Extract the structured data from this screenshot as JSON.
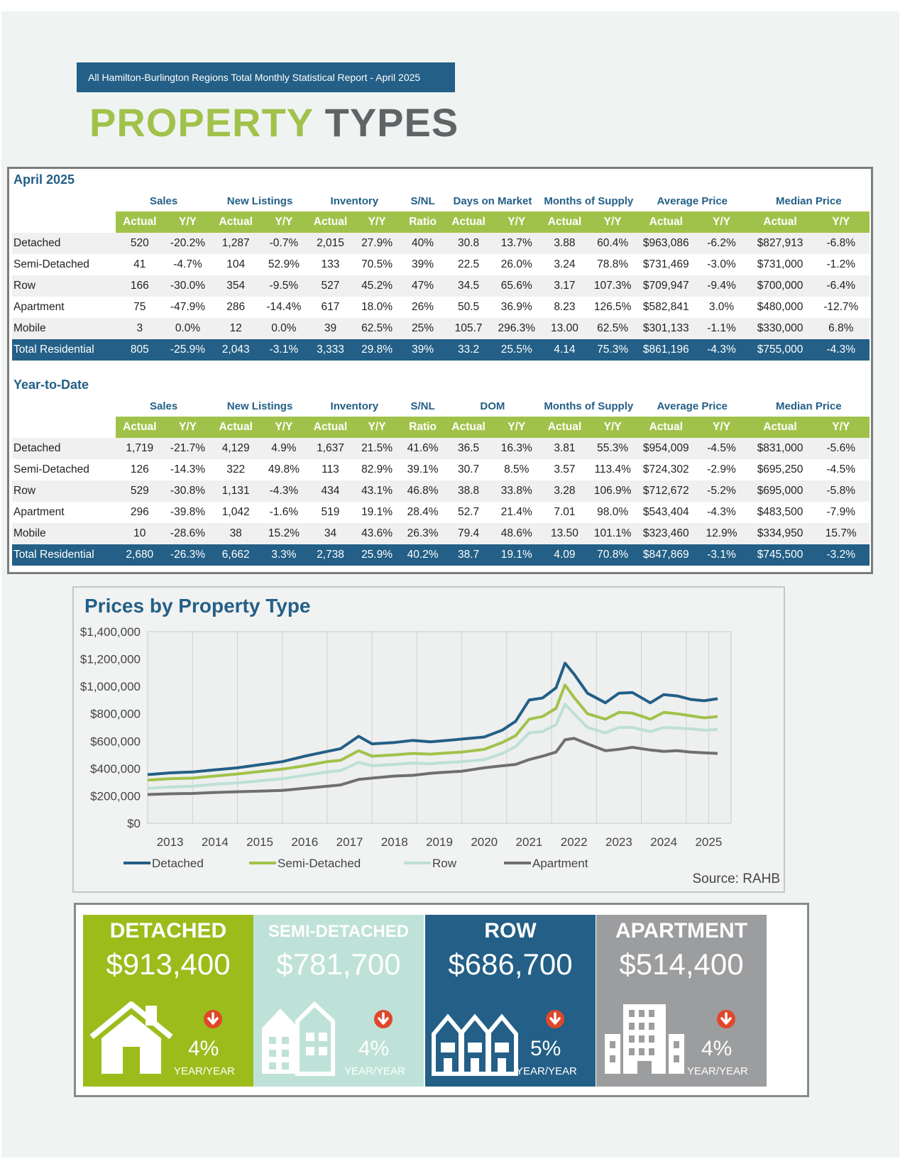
{
  "banner": "All Hamilton-Burlington Regions Total Monthly Statistical Report - April 2025",
  "title": {
    "part1": "PROPERTY",
    "part2": "TYPES"
  },
  "monthly": {
    "section_title": "April 2025",
    "groups": [
      "Sales",
      "New Listings",
      "Inventory",
      "S/NL",
      "Days on Market",
      "Months of Supply",
      "Average Price",
      "Median Price"
    ],
    "subheaders": [
      "Actual",
      "Y/Y",
      "Actual",
      "Y/Y",
      "Actual",
      "Y/Y",
      "Ratio",
      "Actual",
      "Y/Y",
      "Actual",
      "Y/Y",
      "Actual",
      "Y/Y",
      "Actual",
      "Y/Y"
    ],
    "rows": [
      {
        "label": "Detached",
        "values": [
          "520",
          "-20.2%",
          "1,287",
          "-0.7%",
          "2,015",
          "27.9%",
          "40%",
          "30.8",
          "13.7%",
          "3.88",
          "60.4%",
          "$963,086",
          "-6.2%",
          "$827,913",
          "-6.8%"
        ]
      },
      {
        "label": "Semi-Detached",
        "values": [
          "41",
          "-4.7%",
          "104",
          "52.9%",
          "133",
          "70.5%",
          "39%",
          "22.5",
          "26.0%",
          "3.24",
          "78.8%",
          "$731,469",
          "-3.0%",
          "$731,000",
          "-1.2%"
        ]
      },
      {
        "label": "Row",
        "values": [
          "166",
          "-30.0%",
          "354",
          "-9.5%",
          "527",
          "45.2%",
          "47%",
          "34.5",
          "65.6%",
          "3.17",
          "107.3%",
          "$709,947",
          "-9.4%",
          "$700,000",
          "-6.4%"
        ]
      },
      {
        "label": "Apartment",
        "values": [
          "75",
          "-47.9%",
          "286",
          "-14.4%",
          "617",
          "18.0%",
          "26%",
          "50.5",
          "36.9%",
          "8.23",
          "126.5%",
          "$582,841",
          "3.0%",
          "$480,000",
          "-12.7%"
        ]
      },
      {
        "label": "Mobile",
        "values": [
          "3",
          "0.0%",
          "12",
          "0.0%",
          "39",
          "62.5%",
          "25%",
          "105.7",
          "296.3%",
          "13.00",
          "62.5%",
          "$301,133",
          "-1.1%",
          "$330,000",
          "6.8%"
        ]
      },
      {
        "label": "Total Residential",
        "values": [
          "805",
          "-25.9%",
          "2,043",
          "-3.1%",
          "3,333",
          "29.8%",
          "39%",
          "33.2",
          "25.5%",
          "4.14",
          "75.3%",
          "$861,196",
          "-4.3%",
          "$755,000",
          "-4.3%"
        ]
      }
    ]
  },
  "ytd": {
    "section_title": "Year-to-Date",
    "groups": [
      "Sales",
      "New Listings",
      "Inventory",
      "S/NL",
      "DOM",
      "Months of Supply",
      "Average Price",
      "Median Price"
    ],
    "subheaders": [
      "Actual",
      "Y/Y",
      "Actual",
      "Y/Y",
      "Actual",
      "Y/Y",
      "Ratio",
      "Actual",
      "Y/Y",
      "Actual",
      "Y/Y",
      "Actual",
      "Y/Y",
      "Actual",
      "Y/Y"
    ],
    "rows": [
      {
        "label": "Detached",
        "values": [
          "1,719",
          "-21.7%",
          "4,129",
          "4.9%",
          "1,637",
          "21.5%",
          "41.6%",
          "36.5",
          "16.3%",
          "3.81",
          "55.3%",
          "$954,009",
          "-4.5%",
          "$831,000",
          "-5.6%"
        ]
      },
      {
        "label": "Semi-Detached",
        "values": [
          "126",
          "-14.3%",
          "322",
          "49.8%",
          "113",
          "82.9%",
          "39.1%",
          "30.7",
          "8.5%",
          "3.57",
          "113.4%",
          "$724,302",
          "-2.9%",
          "$695,250",
          "-4.5%"
        ]
      },
      {
        "label": "Row",
        "values": [
          "529",
          "-30.8%",
          "1,131",
          "-4.3%",
          "434",
          "43.1%",
          "46.8%",
          "38.8",
          "33.8%",
          "3.28",
          "106.9%",
          "$712,672",
          "-5.2%",
          "$695,000",
          "-5.8%"
        ]
      },
      {
        "label": "Apartment",
        "values": [
          "296",
          "-39.8%",
          "1,042",
          "-1.6%",
          "519",
          "19.1%",
          "28.4%",
          "52.7",
          "21.4%",
          "7.01",
          "98.0%",
          "$543,404",
          "-4.3%",
          "$483,500",
          "-7.9%"
        ]
      },
      {
        "label": "Mobile",
        "values": [
          "10",
          "-28.6%",
          "38",
          "15.2%",
          "34",
          "43.6%",
          "26.3%",
          "79.4",
          "48.6%",
          "13.50",
          "101.1%",
          "$323,460",
          "12.9%",
          "$334,950",
          "15.7%"
        ]
      },
      {
        "label": "Total Residential",
        "values": [
          "2,680",
          "-26.3%",
          "6,662",
          "3.3%",
          "2,738",
          "25.9%",
          "40.2%",
          "38.7",
          "19.1%",
          "4.09",
          "70.8%",
          "$847,869",
          "-3.1%",
          "$745,500",
          "-3.2%"
        ]
      }
    ]
  },
  "chart_data": {
    "type": "line",
    "title": "Prices by Property Type",
    "source": "Source: RAHB",
    "ylim": [
      0,
      1400000
    ],
    "yticks": [
      0,
      200000,
      400000,
      600000,
      800000,
      1000000,
      1200000,
      1400000
    ],
    "ytick_labels": [
      "$0",
      "$200,000",
      "$400,000",
      "$600,000",
      "$800,000",
      "$1,000,000",
      "$1,200,000",
      "$1,400,000"
    ],
    "xlim": [
      2012.5,
      2025.5
    ],
    "xticks": [
      2013,
      2014,
      2015,
      2016,
      2017,
      2018,
      2019,
      2020,
      2021,
      2022,
      2023,
      2024,
      2025
    ],
    "grid": true,
    "legend": "bottom",
    "series": [
      {
        "name": "Detached",
        "color": "#235f86",
        "points": [
          [
            2012.5,
            355000
          ],
          [
            2013,
            368000
          ],
          [
            2013.5,
            375000
          ],
          [
            2014,
            390000
          ],
          [
            2014.5,
            405000
          ],
          [
            2015,
            428000
          ],
          [
            2015.5,
            450000
          ],
          [
            2016,
            490000
          ],
          [
            2016.5,
            525000
          ],
          [
            2016.8,
            545000
          ],
          [
            2017.2,
            635000
          ],
          [
            2017.5,
            580000
          ],
          [
            2018,
            590000
          ],
          [
            2018.4,
            605000
          ],
          [
            2018.8,
            595000
          ],
          [
            2019,
            600000
          ],
          [
            2019.5,
            615000
          ],
          [
            2020,
            630000
          ],
          [
            2020.4,
            680000
          ],
          [
            2020.7,
            745000
          ],
          [
            2021,
            900000
          ],
          [
            2021.3,
            915000
          ],
          [
            2021.6,
            990000
          ],
          [
            2021.8,
            1170000
          ],
          [
            2022,
            1090000
          ],
          [
            2022.3,
            950000
          ],
          [
            2022.7,
            880000
          ],
          [
            2023,
            950000
          ],
          [
            2023.3,
            955000
          ],
          [
            2023.7,
            880000
          ],
          [
            2024,
            940000
          ],
          [
            2024.3,
            930000
          ],
          [
            2024.6,
            905000
          ],
          [
            2024.9,
            895000
          ],
          [
            2025.2,
            910000
          ]
        ]
      },
      {
        "name": "Semi-Detached",
        "color": "#a1c24a",
        "points": [
          [
            2012.5,
            315000
          ],
          [
            2013,
            325000
          ],
          [
            2013.5,
            330000
          ],
          [
            2014,
            345000
          ],
          [
            2014.5,
            360000
          ],
          [
            2015,
            378000
          ],
          [
            2015.5,
            395000
          ],
          [
            2016,
            420000
          ],
          [
            2016.5,
            450000
          ],
          [
            2016.8,
            460000
          ],
          [
            2017.2,
            530000
          ],
          [
            2017.5,
            490000
          ],
          [
            2018,
            500000
          ],
          [
            2018.4,
            510000
          ],
          [
            2018.8,
            505000
          ],
          [
            2019,
            510000
          ],
          [
            2019.5,
            520000
          ],
          [
            2020,
            540000
          ],
          [
            2020.4,
            590000
          ],
          [
            2020.7,
            640000
          ],
          [
            2021,
            760000
          ],
          [
            2021.3,
            780000
          ],
          [
            2021.6,
            840000
          ],
          [
            2021.8,
            1010000
          ],
          [
            2022,
            920000
          ],
          [
            2022.3,
            800000
          ],
          [
            2022.7,
            760000
          ],
          [
            2023,
            810000
          ],
          [
            2023.3,
            805000
          ],
          [
            2023.7,
            760000
          ],
          [
            2024,
            810000
          ],
          [
            2024.3,
            800000
          ],
          [
            2024.6,
            785000
          ],
          [
            2024.9,
            770000
          ],
          [
            2025.2,
            780000
          ]
        ]
      },
      {
        "name": "Row",
        "color": "#bde0d8",
        "points": [
          [
            2012.5,
            255000
          ],
          [
            2013,
            265000
          ],
          [
            2013.5,
            270000
          ],
          [
            2014,
            285000
          ],
          [
            2014.5,
            295000
          ],
          [
            2015,
            310000
          ],
          [
            2015.5,
            325000
          ],
          [
            2016,
            350000
          ],
          [
            2016.5,
            375000
          ],
          [
            2016.8,
            385000
          ],
          [
            2017.2,
            445000
          ],
          [
            2017.5,
            420000
          ],
          [
            2018,
            430000
          ],
          [
            2018.4,
            440000
          ],
          [
            2018.8,
            435000
          ],
          [
            2019,
            440000
          ],
          [
            2019.5,
            450000
          ],
          [
            2020,
            465000
          ],
          [
            2020.4,
            510000
          ],
          [
            2020.7,
            560000
          ],
          [
            2021,
            660000
          ],
          [
            2021.3,
            670000
          ],
          [
            2021.6,
            720000
          ],
          [
            2021.8,
            870000
          ],
          [
            2022,
            800000
          ],
          [
            2022.3,
            700000
          ],
          [
            2022.7,
            660000
          ],
          [
            2023,
            700000
          ],
          [
            2023.3,
            700000
          ],
          [
            2023.7,
            670000
          ],
          [
            2024,
            700000
          ],
          [
            2024.3,
            695000
          ],
          [
            2024.6,
            690000
          ],
          [
            2024.9,
            680000
          ],
          [
            2025.2,
            685000
          ]
        ]
      },
      {
        "name": "Apartment",
        "color": "#6f6f6f",
        "points": [
          [
            2012.5,
            210000
          ],
          [
            2013,
            215000
          ],
          [
            2013.5,
            218000
          ],
          [
            2014,
            225000
          ],
          [
            2014.5,
            230000
          ],
          [
            2015,
            235000
          ],
          [
            2015.5,
            240000
          ],
          [
            2016,
            255000
          ],
          [
            2016.5,
            270000
          ],
          [
            2016.8,
            280000
          ],
          [
            2017.2,
            320000
          ],
          [
            2017.5,
            330000
          ],
          [
            2018,
            345000
          ],
          [
            2018.4,
            350000
          ],
          [
            2018.8,
            365000
          ],
          [
            2019,
            370000
          ],
          [
            2019.5,
            380000
          ],
          [
            2020,
            405000
          ],
          [
            2020.4,
            420000
          ],
          [
            2020.7,
            430000
          ],
          [
            2021,
            465000
          ],
          [
            2021.3,
            490000
          ],
          [
            2021.6,
            520000
          ],
          [
            2021.8,
            610000
          ],
          [
            2022,
            620000
          ],
          [
            2022.3,
            580000
          ],
          [
            2022.7,
            530000
          ],
          [
            2023,
            540000
          ],
          [
            2023.3,
            555000
          ],
          [
            2023.7,
            535000
          ],
          [
            2024,
            525000
          ],
          [
            2024.3,
            530000
          ],
          [
            2024.6,
            520000
          ],
          [
            2024.9,
            515000
          ],
          [
            2025.2,
            510000
          ]
        ]
      }
    ]
  },
  "cards": [
    {
      "name": "DETACHED",
      "price": "$913,400",
      "pct": "4%",
      "yy": "YEAR/YEAR",
      "bg": "#9cbc1c",
      "name_color": "#ffffff",
      "icon": "house-icon"
    },
    {
      "name": "SEMI-DETACHED",
      "price": "$781,700",
      "pct": "4%",
      "yy": "YEAR/YEAR",
      "bg": "#bfe2d8",
      "name_color": "#ffffff",
      "icon": "semi-detached-icon"
    },
    {
      "name": "ROW",
      "price": "$686,700",
      "pct": "5%",
      "yy": "YEAR/YEAR",
      "bg": "#235f86",
      "name_color": "#ffffff",
      "icon": "row-houses-icon"
    },
    {
      "name": "APARTMENT",
      "price": "$514,400",
      "pct": "4%",
      "yy": "YEAR/YEAR",
      "bg": "#9c9d9f",
      "name_color": "#ffffff",
      "icon": "apartment-building-icon"
    }
  ]
}
